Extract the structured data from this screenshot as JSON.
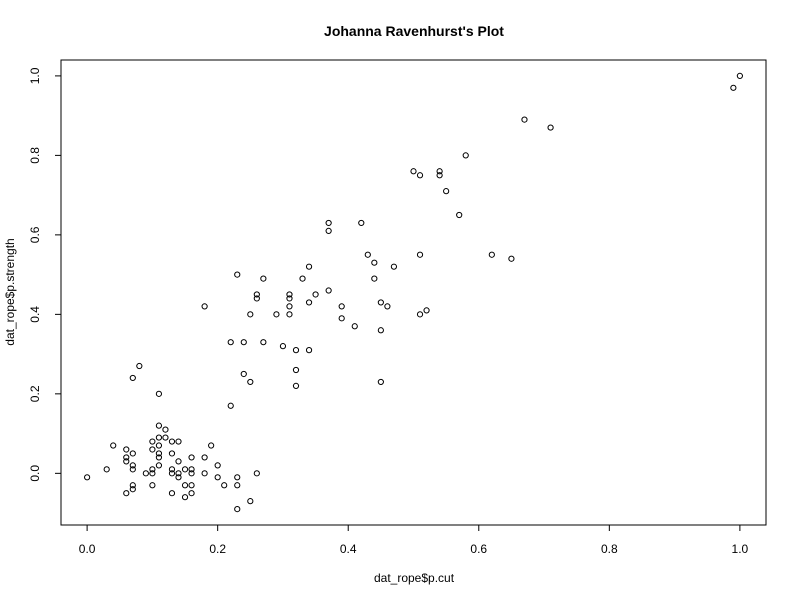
{
  "chart_data": {
    "type": "scatter",
    "title": "Johanna Ravenhurst's Plot",
    "xlabel": "dat_rope$p.cut",
    "ylabel": "dat_rope$p.strength",
    "xlim": [
      -0.04,
      1.04
    ],
    "ylim": [
      -0.13,
      1.04
    ],
    "xticks": [
      0.0,
      0.2,
      0.4,
      0.6,
      0.8,
      1.0
    ],
    "yticks": [
      0.0,
      0.2,
      0.4,
      0.6,
      0.8,
      1.0
    ],
    "xtick_labels": [
      "0.0",
      "0.2",
      "0.4",
      "0.6",
      "0.8",
      "1.0"
    ],
    "ytick_labels": [
      "0.0",
      "0.2",
      "0.4",
      "0.6",
      "0.8",
      "1.0"
    ],
    "grid": false,
    "marker": "open-circle",
    "points": [
      [
        0.0,
        -0.01
      ],
      [
        0.03,
        0.01
      ],
      [
        0.04,
        0.07
      ],
      [
        0.06,
        0.06
      ],
      [
        0.06,
        0.04
      ],
      [
        0.06,
        0.03
      ],
      [
        0.06,
        -0.05
      ],
      [
        0.07,
        0.05
      ],
      [
        0.07,
        0.02
      ],
      [
        0.07,
        0.01
      ],
      [
        0.07,
        -0.03
      ],
      [
        0.07,
        -0.04
      ],
      [
        0.07,
        0.24
      ],
      [
        0.08,
        0.27
      ],
      [
        0.09,
        0.0
      ],
      [
        0.1,
        0.08
      ],
      [
        0.1,
        0.06
      ],
      [
        0.1,
        0.01
      ],
      [
        0.1,
        0.0
      ],
      [
        0.1,
        -0.03
      ],
      [
        0.11,
        0.12
      ],
      [
        0.11,
        0.09
      ],
      [
        0.11,
        0.07
      ],
      [
        0.11,
        0.05
      ],
      [
        0.11,
        0.04
      ],
      [
        0.11,
        0.02
      ],
      [
        0.11,
        0.2
      ],
      [
        0.12,
        0.11
      ],
      [
        0.12,
        0.09
      ],
      [
        0.13,
        0.08
      ],
      [
        0.13,
        0.05
      ],
      [
        0.13,
        0.01
      ],
      [
        0.13,
        0.0
      ],
      [
        0.13,
        -0.05
      ],
      [
        0.14,
        0.08
      ],
      [
        0.14,
        0.03
      ],
      [
        0.14,
        0.0
      ],
      [
        0.14,
        -0.01
      ],
      [
        0.15,
        0.01
      ],
      [
        0.15,
        -0.03
      ],
      [
        0.15,
        -0.06
      ],
      [
        0.16,
        0.04
      ],
      [
        0.16,
        0.01
      ],
      [
        0.16,
        0.0
      ],
      [
        0.16,
        -0.03
      ],
      [
        0.16,
        -0.05
      ],
      [
        0.18,
        0.04
      ],
      [
        0.18,
        0.0
      ],
      [
        0.18,
        0.42
      ],
      [
        0.19,
        0.07
      ],
      [
        0.2,
        0.02
      ],
      [
        0.2,
        -0.01
      ],
      [
        0.21,
        -0.03
      ],
      [
        0.22,
        0.33
      ],
      [
        0.22,
        0.17
      ],
      [
        0.23,
        0.5
      ],
      [
        0.23,
        -0.01
      ],
      [
        0.23,
        -0.03
      ],
      [
        0.23,
        -0.09
      ],
      [
        0.24,
        0.33
      ],
      [
        0.24,
        0.25
      ],
      [
        0.25,
        0.4
      ],
      [
        0.25,
        0.23
      ],
      [
        0.25,
        -0.07
      ],
      [
        0.26,
        0.45
      ],
      [
        0.26,
        0.44
      ],
      [
        0.26,
        0.0
      ],
      [
        0.27,
        0.49
      ],
      [
        0.27,
        0.33
      ],
      [
        0.29,
        0.4
      ],
      [
        0.3,
        0.32
      ],
      [
        0.31,
        0.45
      ],
      [
        0.31,
        0.44
      ],
      [
        0.31,
        0.42
      ],
      [
        0.31,
        0.4
      ],
      [
        0.32,
        0.31
      ],
      [
        0.32,
        0.26
      ],
      [
        0.32,
        0.22
      ],
      [
        0.33,
        0.49
      ],
      [
        0.34,
        0.52
      ],
      [
        0.34,
        0.43
      ],
      [
        0.34,
        0.31
      ],
      [
        0.35,
        0.45
      ],
      [
        0.37,
        0.63
      ],
      [
        0.37,
        0.61
      ],
      [
        0.37,
        0.46
      ],
      [
        0.39,
        0.42
      ],
      [
        0.39,
        0.39
      ],
      [
        0.41,
        0.37
      ],
      [
        0.42,
        0.63
      ],
      [
        0.43,
        0.55
      ],
      [
        0.44,
        0.53
      ],
      [
        0.44,
        0.49
      ],
      [
        0.45,
        0.43
      ],
      [
        0.45,
        0.36
      ],
      [
        0.45,
        0.23
      ],
      [
        0.46,
        0.42
      ],
      [
        0.47,
        0.52
      ],
      [
        0.5,
        0.76
      ],
      [
        0.51,
        0.75
      ],
      [
        0.51,
        0.55
      ],
      [
        0.51,
        0.4
      ],
      [
        0.52,
        0.41
      ],
      [
        0.54,
        0.76
      ],
      [
        0.54,
        0.75
      ],
      [
        0.55,
        0.71
      ],
      [
        0.57,
        0.65
      ],
      [
        0.58,
        0.8
      ],
      [
        0.62,
        0.55
      ],
      [
        0.65,
        0.54
      ],
      [
        0.67,
        0.89
      ],
      [
        0.71,
        0.87
      ],
      [
        0.99,
        0.97
      ],
      [
        1.0,
        1.0
      ]
    ]
  }
}
